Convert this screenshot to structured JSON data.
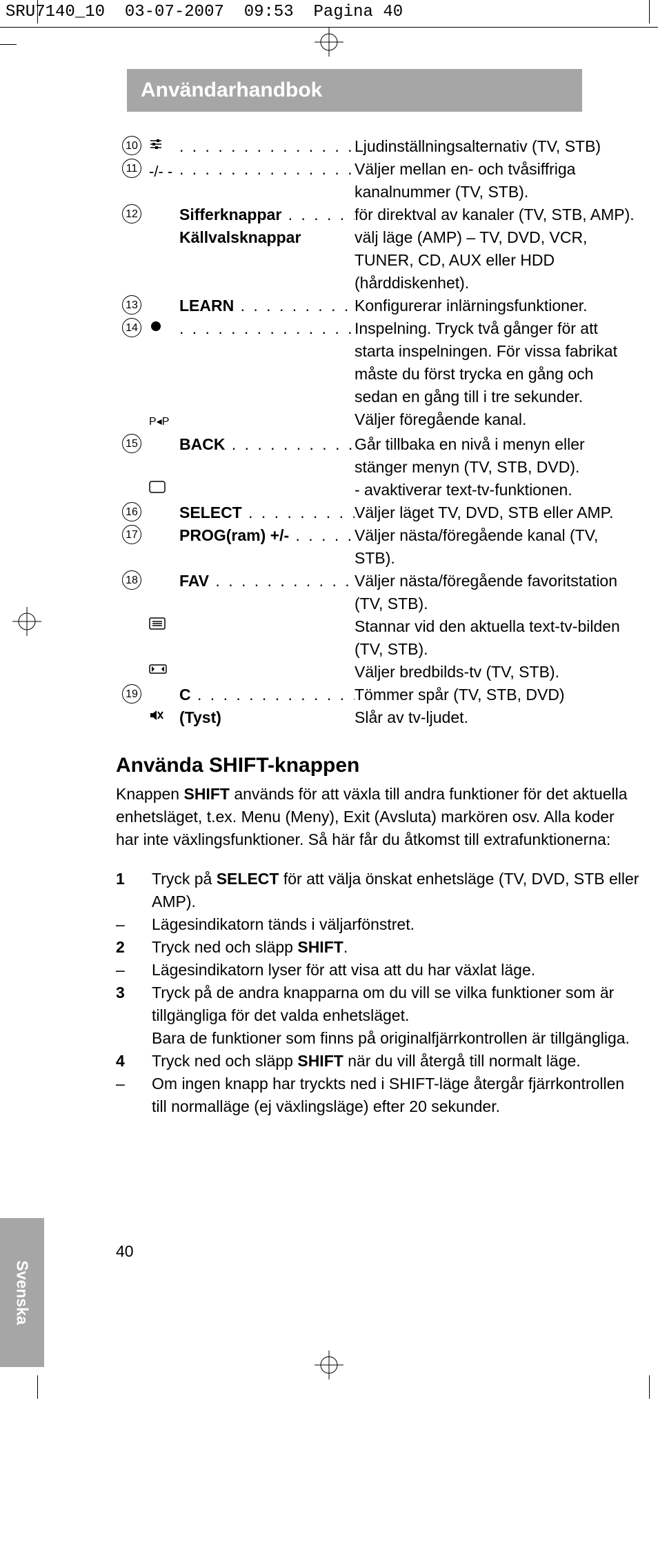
{
  "header": {
    "file": "SRU7140_10",
    "date": "03-07-2007",
    "time": "09:53",
    "page_word": "Pagina",
    "page_num": "40"
  },
  "title": "Användarhandbok",
  "definitions": [
    {
      "num": "10",
      "icon": "settings-sliders",
      "label": "",
      "desc": "Ljudinställningsalternativ (TV, STB)"
    },
    {
      "num": "11",
      "icon": "plus-digits",
      "label": "",
      "desc": "Väljer mellan en- och tvåsiffriga kanalnummer (TV, STB)."
    },
    {
      "num": "12",
      "icon": "",
      "label": "Sifferknappar",
      "desc": "för direktval av kanaler (TV, STB, AMP)."
    },
    {
      "num": "",
      "icon": "",
      "label": "Källvalsknappar",
      "no_dots": true,
      "desc": "välj läge (AMP) – TV, DVD, VCR, TUNER, CD, AUX eller HDD (hårddiskenhet)."
    },
    {
      "num": "13",
      "icon": "",
      "label": "LEARN",
      "desc": "Konfigurerar inlärningsfunktioner."
    },
    {
      "num": "14",
      "icon": "record-dot",
      "label": "",
      "desc": "Inspelning. Tryck två gånger för att starta inspelningen. För vissa fabrikat måste du först trycka en gång och sedan en gång till i tre sekunder."
    },
    {
      "num": "",
      "icon": "prev-channel",
      "label": "",
      "no_dots": true,
      "desc": "Väljer föregående kanal."
    },
    {
      "num": "15",
      "icon": "",
      "label": "BACK",
      "desc": "Går tillbaka en nivå i menyn eller stänger menyn (TV, STB, DVD)."
    },
    {
      "num": "",
      "icon": "teletext-off",
      "label": "",
      "no_dots": true,
      "desc": "- avaktiverar text-tv-funktionen."
    },
    {
      "num": "16",
      "icon": "",
      "label": "SELECT",
      "desc": "Väljer läget TV, DVD, STB eller AMP."
    },
    {
      "num": "17",
      "icon": "",
      "label": "PROG(ram) +/-",
      "desc": "Väljer nästa/föregående kanal (TV, STB)."
    },
    {
      "num": "18",
      "icon": "",
      "label": "FAV",
      "desc": "Väljer nästa/föregående favoritstation (TV, STB)."
    },
    {
      "num": "",
      "icon": "teletext-hold",
      "label": "",
      "no_dots": true,
      "desc": "Stannar vid den aktuella text-tv-bilden (TV, STB)."
    },
    {
      "num": "",
      "icon": "widescreen",
      "label": "",
      "no_dots": true,
      "desc": "Väljer bredbilds-tv (TV, STB)."
    },
    {
      "num": "19",
      "icon": "",
      "label": "C",
      "desc": "Tömmer spår (TV, STB, DVD)"
    },
    {
      "num": "",
      "icon": "mute",
      "label": "(Tyst)",
      "label_bold": true,
      "no_dots": true,
      "desc": "Slår av tv-ljudet."
    }
  ],
  "section_title": "Använda SHIFT-knappen",
  "intro_1": "Knappen ",
  "intro_shift": "SHIFT",
  "intro_2": " används för att växla till andra funktioner för det aktuella enhetsläget, t.ex. Menu (Meny), Exit (Avsluta) markören osv. Alla koder har inte växlingsfunktioner. Så här får du åtkomst till extrafunktionerna:",
  "steps": [
    {
      "marker": "1",
      "bold": true,
      "pre": "Tryck på ",
      "b1": "SELECT",
      "post": " för att välja önskat enhetsläge (TV, DVD, STB eller AMP)."
    },
    {
      "marker": "–",
      "bold": false,
      "text": "Lägesindikatorn tänds i väljarfönstret."
    },
    {
      "marker": "2",
      "bold": true,
      "pre": "Tryck ned och släpp ",
      "b1": "SHIFT",
      "post": "."
    },
    {
      "marker": "–",
      "bold": false,
      "text": "Lägesindikatorn lyser för att visa att du har växlat läge."
    },
    {
      "marker": "3",
      "bold": true,
      "text": "Tryck på de andra knapparna om du vill se vilka funktioner som är tillgängliga för det valda enhetsläget.\nBara de funktioner som finns på originalfjärrkontrollen är tillgängliga."
    },
    {
      "marker": "4",
      "bold": true,
      "pre": "Tryck ned och släpp ",
      "b1": "SHIFT",
      "post": " när du vill återgå till normalt läge."
    },
    {
      "marker": "–",
      "bold": false,
      "text": "Om ingen knapp har tryckts ned i SHIFT-läge återgår fjärrkontrollen till normalläge (ej växlingsläge) efter 20 sekunder."
    }
  ],
  "language": "Svenska",
  "page_number": "40",
  "colors": {
    "bar_bg": "#a6a6a6",
    "bar_fg": "#ffffff",
    "page_bg": "#ffffff",
    "text": "#000000"
  }
}
